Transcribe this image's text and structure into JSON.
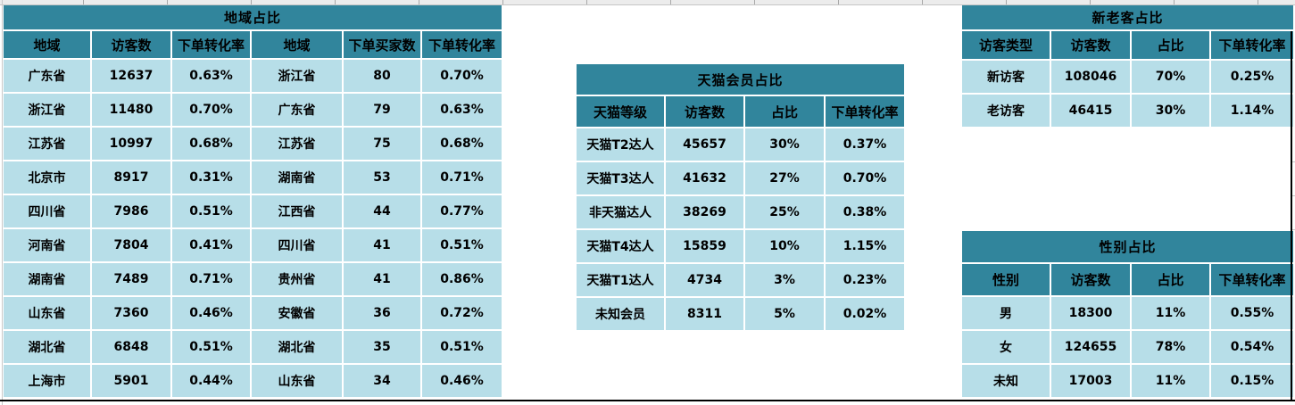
{
  "colors": {
    "header_fill": "#31859C",
    "cell_fill": "#B7DEE8",
    "text": "#000000",
    "gridline": "#C8C8C8",
    "region_border": "#000000"
  },
  "tables": {
    "region": {
      "title": "地域占比",
      "headers": [
        "地域",
        "访客数",
        "下单转化率",
        "地域",
        "下单买家数",
        "下单转化率"
      ],
      "rows": [
        [
          "广东省",
          "12637",
          "0.63%",
          "浙江省",
          "80",
          "0.70%"
        ],
        [
          "浙江省",
          "11480",
          "0.70%",
          "广东省",
          "79",
          "0.63%"
        ],
        [
          "江苏省",
          "10997",
          "0.68%",
          "江苏省",
          "75",
          "0.68%"
        ],
        [
          "北京市",
          "8917",
          "0.31%",
          "湖南省",
          "53",
          "0.71%"
        ],
        [
          "四川省",
          "7986",
          "0.51%",
          "江西省",
          "44",
          "0.77%"
        ],
        [
          "河南省",
          "7804",
          "0.41%",
          "四川省",
          "41",
          "0.51%"
        ],
        [
          "湖南省",
          "7489",
          "0.71%",
          "贵州省",
          "41",
          "0.86%"
        ],
        [
          "山东省",
          "7360",
          "0.46%",
          "安徽省",
          "36",
          "0.72%"
        ],
        [
          "湖北省",
          "6848",
          "0.51%",
          "湖北省",
          "35",
          "0.51%"
        ],
        [
          "上海市",
          "5901",
          "0.44%",
          "山东省",
          "34",
          "0.46%"
        ]
      ]
    },
    "tmall": {
      "title": "天猫会员占比",
      "headers": [
        "天猫等级",
        "访客数",
        "占比",
        "下单转化率"
      ],
      "rows": [
        [
          "天猫T2达人",
          "45657",
          "30%",
          "0.37%"
        ],
        [
          "天猫T3达人",
          "41632",
          "27%",
          "0.70%"
        ],
        [
          "非天猫达人",
          "38269",
          "25%",
          "0.38%"
        ],
        [
          "天猫T4达人",
          "15859",
          "10%",
          "1.15%"
        ],
        [
          "天猫T1达人",
          "4734",
          "3%",
          "0.23%"
        ],
        [
          "未知会员",
          "8311",
          "5%",
          "0.02%"
        ]
      ]
    },
    "visitor_type": {
      "title": "新老客占比",
      "headers": [
        "访客类型",
        "访客数",
        "占比",
        "下单转化率"
      ],
      "rows": [
        [
          "新访客",
          "108046",
          "70%",
          "0.25%"
        ],
        [
          "老访客",
          "46415",
          "30%",
          "1.14%"
        ]
      ]
    },
    "gender": {
      "title": "性别占比",
      "headers": [
        "性别",
        "访客数",
        "占比",
        "下单转化率"
      ],
      "rows": [
        [
          "男",
          "18300",
          "11%",
          "0.55%"
        ],
        [
          "女",
          "124655",
          "78%",
          "0.54%"
        ],
        [
          "未知",
          "17003",
          "11%",
          "0.15%"
        ]
      ]
    }
  }
}
